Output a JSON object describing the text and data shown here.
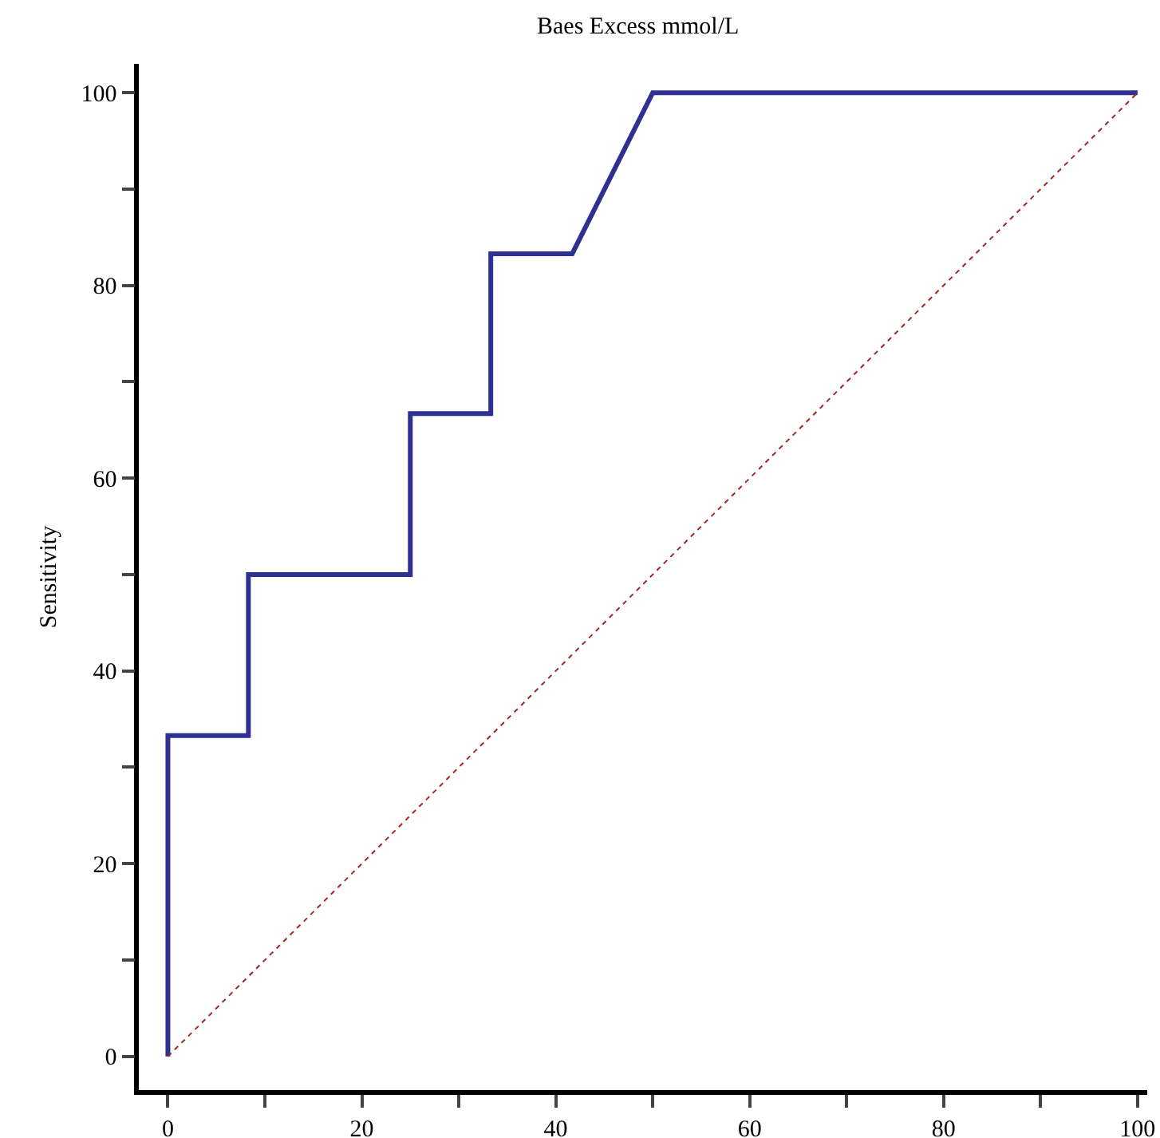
{
  "chart_data": {
    "type": "line",
    "title": "Baes Excess mmol/L",
    "ylabel": "Sensitivity",
    "series": [
      {
        "x": [
          0,
          0,
          8.3,
          8.3,
          25,
          25,
          33.3,
          33.3,
          41.7,
          50,
          100
        ],
        "values": [
          0,
          33.3,
          33.3,
          50,
          50,
          66.7,
          66.7,
          83.3,
          83.3,
          100,
          100
        ],
        "color": "#2e3192",
        "line_style": "solid"
      },
      {
        "x": [
          0,
          100
        ],
        "values": [
          0,
          100
        ],
        "color": "#a0262a",
        "line_style": "dotted"
      }
    ],
    "xlim": [
      -3,
      101
    ],
    "ylim": [
      -3.5,
      103
    ],
    "xticks": [
      0,
      {
        "value": 10,
        "label": null
      },
      20,
      {
        "value": 30,
        "label": null
      },
      40,
      {
        "value": 50,
        "label": null
      },
      60,
      {
        "value": 70,
        "label": null
      },
      80,
      {
        "value": 90,
        "label": null
      },
      100
    ],
    "yticks": [
      0,
      {
        "value": 10,
        "label": null
      },
      20,
      {
        "value": 30,
        "label": null
      },
      40,
      {
        "value": 50,
        "label": null
      },
      60,
      {
        "value": 70,
        "label": null
      },
      80,
      {
        "value": 90,
        "label": null
      },
      100
    ],
    "grid": false
  }
}
